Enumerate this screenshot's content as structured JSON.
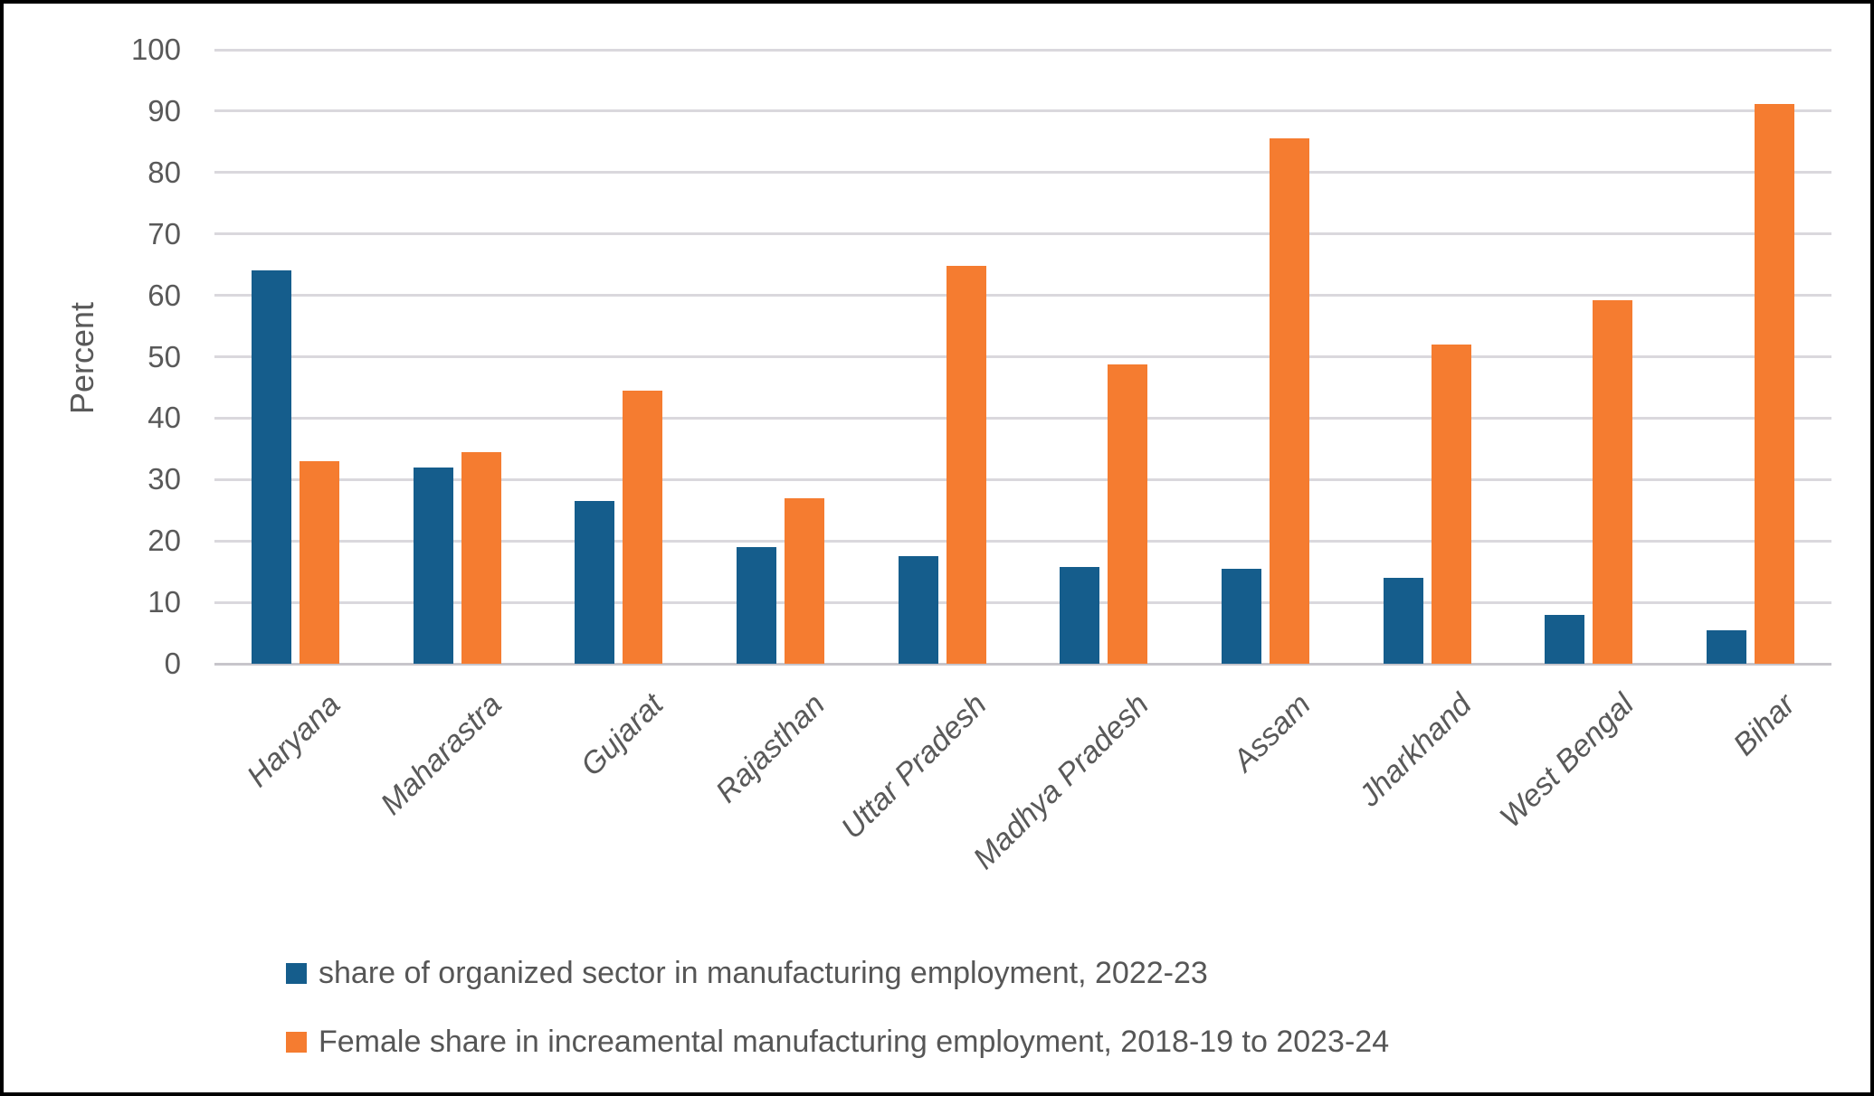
{
  "chart_data": {
    "type": "bar",
    "title": "",
    "xlabel": "",
    "ylabel": "Percent",
    "ylim": [
      0,
      100
    ],
    "ytick_step": 10,
    "grid": true,
    "legend_position": "bottom-left",
    "categories": [
      "Haryana",
      "Maharastra",
      "Gujarat",
      "Rajasthan",
      "Uttar Pradesh",
      "Madhya Pradesh",
      "Assam",
      "Jharkhand",
      "West Bengal",
      "Bihar"
    ],
    "series": [
      {
        "name": "share of organized sector in manufacturing employment, 2022-23",
        "color": "#155d8c",
        "values": [
          64,
          32,
          26.5,
          19,
          17.6,
          15.7,
          15.5,
          14,
          7.9,
          5.5
        ]
      },
      {
        "name": "Female share in increamental manufacturing employment, 2018-19 to 2023-24",
        "color": "#f57c30",
        "values": [
          33,
          34.5,
          44.5,
          27,
          64.8,
          48.7,
          85.5,
          52,
          59.2,
          91.2
        ]
      }
    ]
  },
  "colors": {
    "gridline": "#dad8dd",
    "axis_line": "#c7c5cb",
    "tick_text": "#595959",
    "legend_text": "#565656",
    "frame_border": "#000000",
    "background": "#ffffff"
  }
}
